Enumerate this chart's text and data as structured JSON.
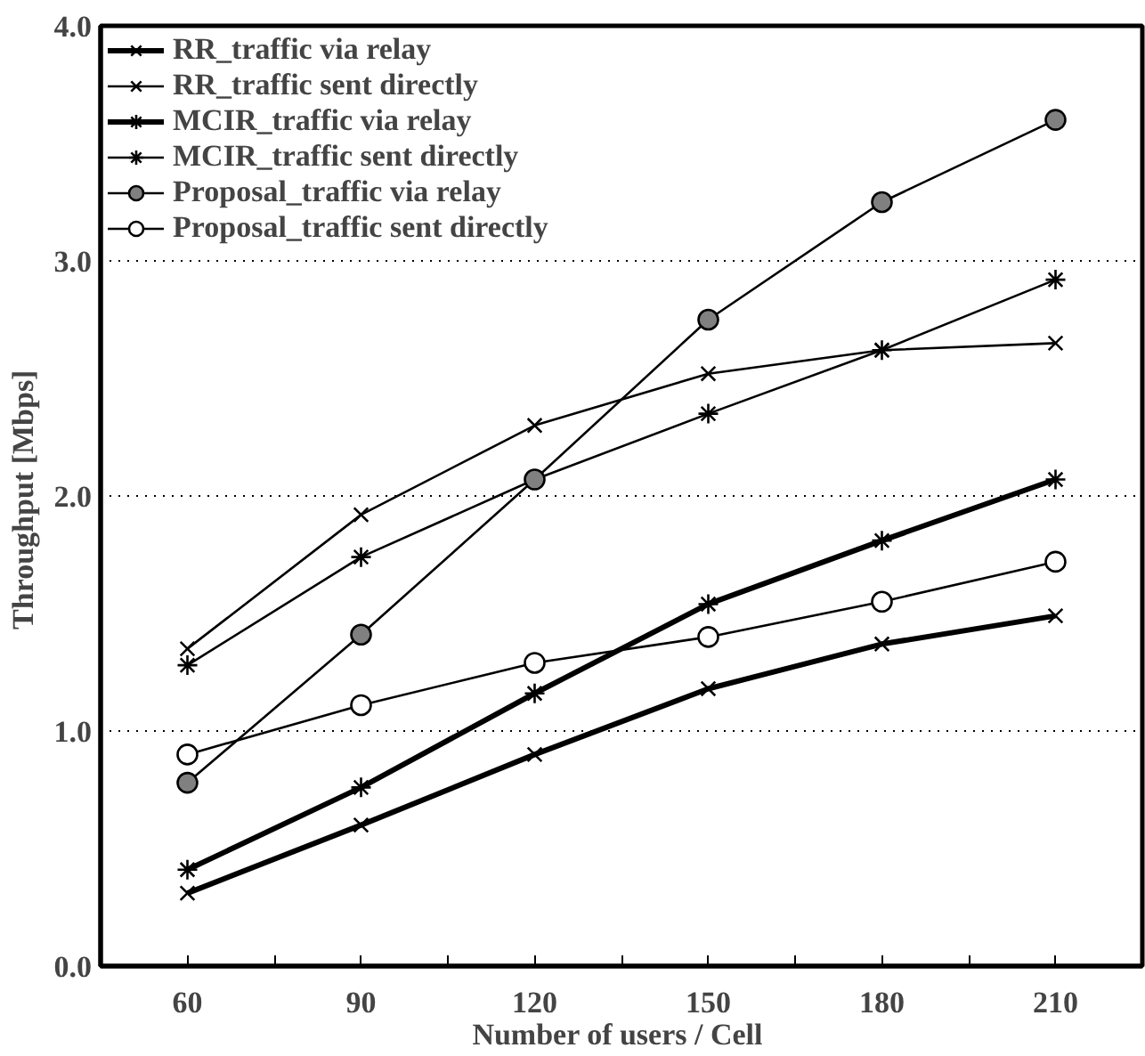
{
  "chart_data": {
    "type": "line",
    "xlabel": "Number of  users / Cell",
    "ylabel": "Throughput  [Mbps]",
    "x": [
      60,
      90,
      120,
      150,
      180,
      210
    ],
    "xlim": [
      45,
      225
    ],
    "xticks": [
      60,
      {
        "value": 75,
        "label": null
      },
      90,
      {
        "value": 105,
        "label": null
      },
      120,
      {
        "value": 135,
        "label": null
      },
      150,
      {
        "value": 165,
        "label": null
      },
      180,
      {
        "value": 195,
        "label": null
      },
      210
    ],
    "ylim": [
      0,
      4
    ],
    "yticks": [
      {
        "value": 0,
        "label": "0.0"
      },
      {
        "value": 1,
        "label": "1.0"
      },
      {
        "value": 2,
        "label": "2.0"
      },
      {
        "value": 3,
        "label": "3.0"
      },
      {
        "value": 4,
        "label": "4.0"
      }
    ],
    "grid": "y",
    "legend": "top left",
    "series": [
      {
        "name": "RR_traffic via relay",
        "color": "#000000",
        "marker": "cross",
        "values": [
          0.31,
          0.6,
          0.9,
          1.18,
          1.37,
          1.49
        ]
      },
      {
        "name": "RR_traffic sent directly",
        "color": "#000000",
        "marker": "cross",
        "values": [
          1.35,
          1.92,
          2.3,
          2.52,
          2.62,
          2.65
        ]
      },
      {
        "name": "MCIR_traffic via relay",
        "color": "#000000",
        "marker": "cross",
        "values": [
          0.41,
          0.76,
          1.16,
          1.54,
          1.81,
          2.07
        ]
      },
      {
        "name": "MCIR_traffic sent directly",
        "color": "#000000",
        "marker": "cross",
        "values": [
          1.28,
          1.74,
          2.07,
          2.35,
          2.62,
          2.92
        ]
      },
      {
        "name": "Proposal_traffic via relay",
        "color": "#000000",
        "marker": "circle",
        "values": [
          0.78,
          1.41,
          2.07,
          2.75,
          3.25,
          3.6
        ]
      },
      {
        "name": "Proposal_traffic sent directly",
        "color": "#000000",
        "marker": "circle",
        "values": [
          0.9,
          1.11,
          1.29,
          1.4,
          1.55,
          1.72
        ]
      }
    ]
  }
}
